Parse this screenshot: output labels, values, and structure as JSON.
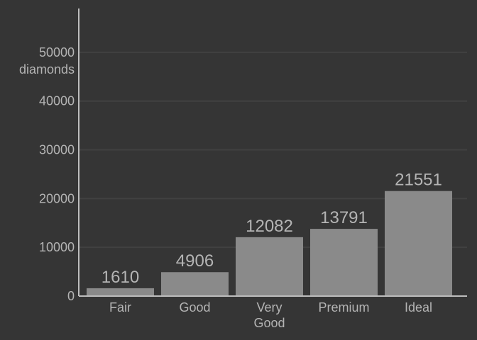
{
  "chart_data": {
    "type": "bar",
    "categories": [
      "Fair",
      "Good",
      "Very Good",
      "Premium",
      "Ideal"
    ],
    "category_lines": [
      [
        "Fair"
      ],
      [
        "Good"
      ],
      [
        "Very",
        "Good"
      ],
      [
        "Premium"
      ],
      [
        "Ideal"
      ]
    ],
    "values": [
      1610,
      4906,
      12082,
      13791,
      21551
    ],
    "data_labels": [
      "1610",
      "4906",
      "12082",
      "13791",
      "21551"
    ],
    "title": "",
    "xlabel": "",
    "ylabel": "",
    "y_unit_label": "diamonds",
    "y_unit_after_tick": "50000",
    "ylim": [
      0,
      59000
    ],
    "yticks": [
      0,
      10000,
      20000,
      30000,
      40000,
      50000
    ],
    "ytick_labels": [
      "0",
      "10000",
      "20000",
      "30000",
      "40000",
      "50000"
    ],
    "grid": true,
    "legend": "none",
    "colors": {
      "background": "#353535",
      "bar": "#8a8a8a",
      "grid": "#414141",
      "axis": "#bdbdbd",
      "text": "#b4b4b4"
    }
  }
}
